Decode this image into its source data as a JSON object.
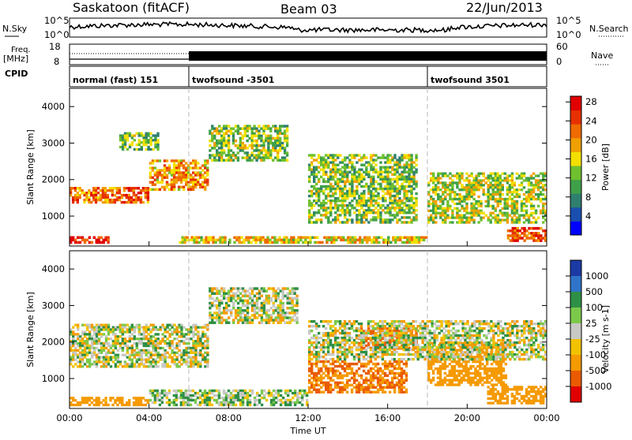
{
  "header": {
    "station": "Saskatoon (fitACF)",
    "beam": "Beam 03",
    "date": "22/Jun/2013"
  },
  "noise_panel": {
    "left_label": "N.Sky",
    "right_label": "N.Search",
    "left_ticks": [
      "10^5",
      "10^0"
    ],
    "right_ticks": [
      "10^5",
      "10^0"
    ]
  },
  "freq_panel": {
    "left_label_top": "Freq.",
    "left_label_bottom": "[MHz]",
    "right_label": "Nave",
    "left_ticks": [
      "18",
      "8"
    ],
    "right_ticks": [
      "60",
      "0"
    ],
    "freq_mhz": 11.2
  },
  "cpid": {
    "label": "CPID",
    "segments": [
      {
        "name": "normal (fast) 151",
        "start_hour": 0,
        "end_hour": 6
      },
      {
        "name": "twofsound -3501",
        "start_hour": 6,
        "end_hour": 18
      },
      {
        "name": "twofsound 3501",
        "start_hour": 18,
        "end_hour": 24
      }
    ]
  },
  "colors": {
    "power": [
      "#0000ff",
      "#1a4fb0",
      "#2f7f6f",
      "#3fa04a",
      "#6fc02f",
      "#f4e000",
      "#f0a000",
      "#ef6a00",
      "#e73000",
      "#e00000"
    ],
    "velocity": [
      "#1c3aa5",
      "#2f74c9",
      "#2e8f46",
      "#7bc94a",
      "#c8c8c4",
      "#f2c200",
      "#f59a00",
      "#ea5b00",
      "#e00000"
    ]
  },
  "chart_data": [
    {
      "type": "heatmap",
      "name": "power",
      "ylabel": "Slant Range [km]",
      "xlabel": "",
      "xlim": [
        0,
        24
      ],
      "ylim": [
        180,
        4500
      ],
      "x_ticks": [
        "00:00",
        "04:00",
        "08:00",
        "12:00",
        "16:00",
        "20:00",
        "00:00"
      ],
      "y_ticks": [
        1000,
        2000,
        3000,
        4000
      ],
      "colorbar": {
        "label": "Power [dB]",
        "ticks": [
          "4",
          "8",
          "12",
          "16",
          "20",
          "24",
          "28"
        ],
        "range": [
          0,
          30
        ]
      },
      "regions": [
        {
          "hours": [
            0.0,
            1.5
          ],
          "range_km": [
            1350,
            1800
          ],
          "level": 0.75
        },
        {
          "hours": [
            1.5,
            4.0
          ],
          "range_km": [
            1350,
            1800
          ],
          "level": 0.8
        },
        {
          "hours": [
            4.0,
            7.0
          ],
          "range_km": [
            1700,
            2550
          ],
          "level": 0.7
        },
        {
          "hours": [
            7.0,
            11.0
          ],
          "range_km": [
            2500,
            3500
          ],
          "level": 0.45
        },
        {
          "hours": [
            2.5,
            4.5
          ],
          "range_km": [
            2800,
            3300
          ],
          "level": 0.4
        },
        {
          "hours": [
            0.0,
            2.0
          ],
          "range_km": [
            250,
            450
          ],
          "level": 0.95
        },
        {
          "hours": [
            5.5,
            18.0
          ],
          "range_km": [
            250,
            450
          ],
          "level": 0.6
        },
        {
          "hours": [
            12.0,
            17.5
          ],
          "range_km": [
            800,
            2700
          ],
          "level": 0.45
        },
        {
          "hours": [
            18.0,
            24.0
          ],
          "range_km": [
            800,
            2200
          ],
          "level": 0.5
        },
        {
          "hours": [
            22.0,
            24.0
          ],
          "range_km": [
            300,
            700
          ],
          "level": 0.85
        }
      ]
    },
    {
      "type": "heatmap",
      "name": "velocity",
      "ylabel": "Slant Range [km]",
      "xlabel": "Time UT",
      "xlim": [
        0,
        24
      ],
      "ylim": [
        180,
        4500
      ],
      "x_ticks": [
        "00:00",
        "04:00",
        "08:00",
        "12:00",
        "16:00",
        "20:00",
        "00:00"
      ],
      "y_ticks": [
        1000,
        2000,
        3000,
        4000
      ],
      "colorbar": {
        "label": "Velocity [m s-1]",
        "ticks": [
          "1000",
          "500",
          "100",
          "25",
          "-25",
          "-100",
          "-500",
          "-1000"
        ]
      },
      "regions": [
        {
          "hours": [
            0.0,
            7.0
          ],
          "range_km": [
            1300,
            2500
          ],
          "value_ms": 0
        },
        {
          "hours": [
            7.0,
            11.5
          ],
          "range_km": [
            2500,
            3500
          ],
          "value_ms": 0
        },
        {
          "hours": [
            0.0,
            4.0
          ],
          "range_km": [
            250,
            500
          ],
          "value_ms": -150
        },
        {
          "hours": [
            4.0,
            12.0
          ],
          "range_km": [
            250,
            700
          ],
          "value_ms": 40
        },
        {
          "hours": [
            12.0,
            17.0
          ],
          "range_km": [
            600,
            1500
          ],
          "value_ms": -300
        },
        {
          "hours": [
            14.5,
            17.5
          ],
          "range_km": [
            1800,
            2400
          ],
          "value_ms": -600
        },
        {
          "hours": [
            18.0,
            22.0
          ],
          "range_km": [
            800,
            2000
          ],
          "value_ms": -200
        },
        {
          "hours": [
            21.0,
            24.0
          ],
          "range_km": [
            300,
            800
          ],
          "value_ms": -200
        },
        {
          "hours": [
            12.0,
            24.0
          ],
          "range_km": [
            1500,
            2600
          ],
          "value_ms": 0
        }
      ]
    }
  ]
}
